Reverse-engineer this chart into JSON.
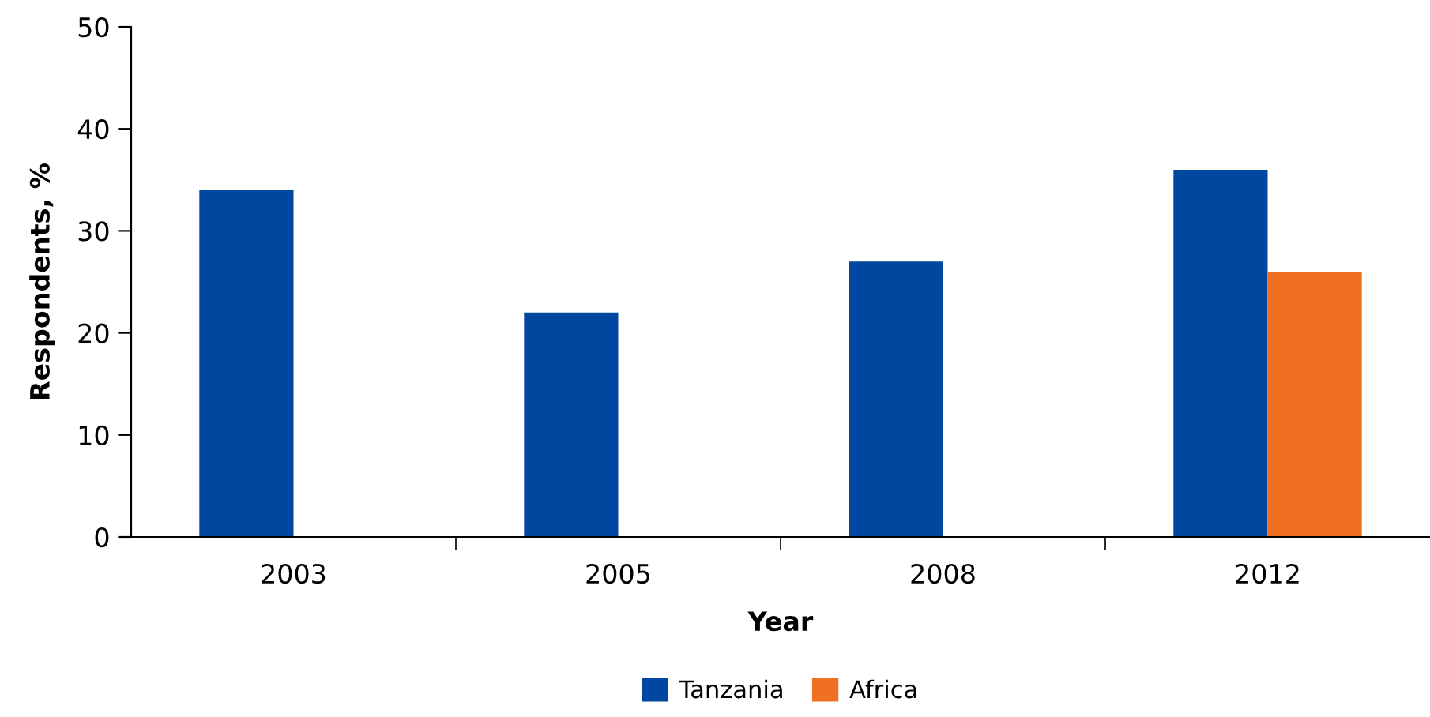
{
  "chart_data": {
    "type": "bar",
    "xlabel": "Year",
    "ylabel": "Respondents, %",
    "categories": [
      "2003",
      "2005",
      "2008",
      "2012"
    ],
    "series": [
      {
        "name": "Tanzania",
        "color": "#0047a0",
        "values": [
          34,
          22,
          27,
          36
        ]
      },
      {
        "name": "Africa",
        "color": "#f07022",
        "values": [
          null,
          null,
          null,
          26
        ]
      }
    ],
    "ylim": [
      0,
      50
    ],
    "yticks": [
      0,
      10,
      20,
      30,
      40,
      50
    ],
    "grid": false,
    "legend": "bottom"
  }
}
